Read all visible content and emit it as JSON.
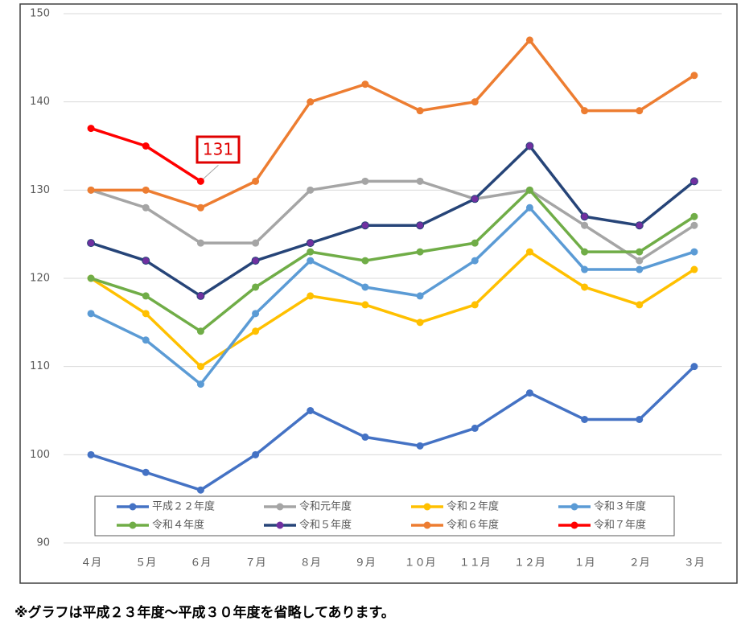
{
  "chart_data": {
    "type": "line",
    "categories": [
      "４月",
      "５月",
      "６月",
      "７月",
      "８月",
      "９月",
      "１０月",
      "１１月",
      "１２月",
      "１月",
      "２月",
      "３月"
    ],
    "ylim": [
      90,
      150
    ],
    "yticks": [
      90,
      100,
      110,
      120,
      130,
      140,
      150
    ],
    "grid": true,
    "series": [
      {
        "name": "平成２２年度",
        "color": "#4472c4",
        "values": [
          100,
          98,
          96,
          100,
          105,
          102,
          101,
          103,
          107,
          104,
          104,
          110
        ]
      },
      {
        "name": "令和元年度",
        "color": "#a5a5a5",
        "values": [
          130,
          128,
          124,
          124,
          130,
          131,
          131,
          129,
          130,
          126,
          122,
          126
        ]
      },
      {
        "name": "令和２年度",
        "color": "#ffc000",
        "values": [
          120,
          116,
          110,
          114,
          118,
          117,
          115,
          117,
          123,
          119,
          117,
          121
        ]
      },
      {
        "name": "令和３年度",
        "color": "#5b9bd5",
        "values": [
          116,
          113,
          108,
          116,
          122,
          119,
          118,
          122,
          128,
          121,
          121,
          123
        ]
      },
      {
        "name": "令和４年度",
        "color": "#70ad47",
        "values": [
          120,
          118,
          114,
          119,
          123,
          122,
          123,
          124,
          130,
          123,
          123,
          127
        ]
      },
      {
        "name": "令和５年度",
        "color": "#264478",
        "values": [
          124,
          122,
          118,
          122,
          124,
          126,
          126,
          129,
          135,
          127,
          126,
          131
        ]
      },
      {
        "name": "令和６年度",
        "color": "#ed7d31",
        "values": [
          130,
          130,
          128,
          131,
          140,
          142,
          139,
          140,
          147,
          139,
          139,
          143
        ]
      },
      {
        "name": "令和７年度",
        "color": "#ff0000",
        "values": [
          137,
          135,
          131,
          null,
          null,
          null,
          null,
          null,
          null,
          null,
          null,
          null
        ]
      }
    ],
    "note": "※グラフは平成２３年度～平成３０年度を省略してあります。"
  }
}
